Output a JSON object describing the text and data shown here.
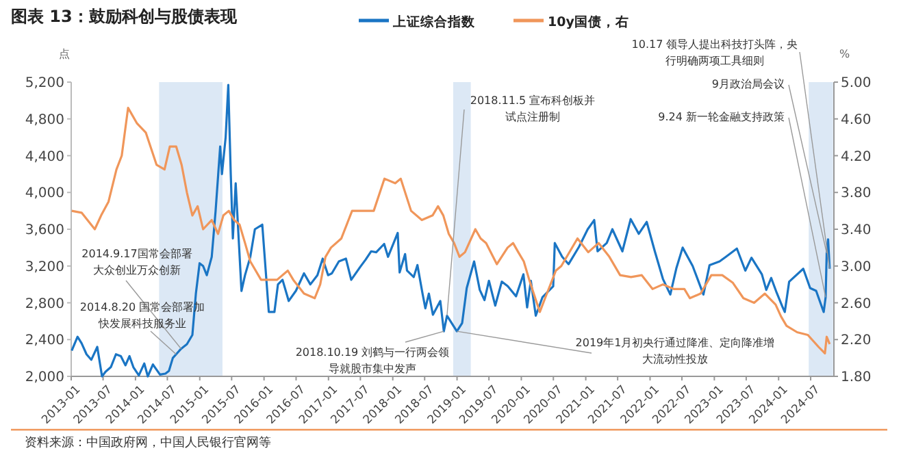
{
  "chart_data": {
    "type": "line",
    "title": "图表 13：鼓励科创与股债表现",
    "ylabel": "点",
    "y2label": "%",
    "legend": "top",
    "marker": "none",
    "line_style": "solid",
    "xlim": [
      "2013-01-01",
      "2024-11-10"
    ],
    "xticks": [
      "2013-01",
      "2013-07",
      "2014-01",
      "2014-07",
      "2015-01",
      "2015-07",
      "2016-01",
      "2016-07",
      "2017-01",
      "2017-07",
      "2018-01",
      "2018-07",
      "2019-01",
      "2019-07",
      "2020-01",
      "2020-07",
      "2021-01",
      "2021-07",
      "2022-01",
      "2022-07",
      "2023-01",
      "2023-07",
      "2024-01",
      "2024-07"
    ],
    "ylim": [
      2000,
      5200
    ],
    "yticks": [
      {
        "value": 2000,
        "label": "2,000"
      },
      {
        "value": 2400,
        "label": "2,400"
      },
      {
        "value": 2800,
        "label": "2,800"
      },
      {
        "value": 3200,
        "label": "3,200"
      },
      {
        "value": 3600,
        "label": "3,600"
      },
      {
        "value": 4000,
        "label": "4,000"
      },
      {
        "value": 4400,
        "label": "4,400"
      },
      {
        "value": 4800,
        "label": "4,800"
      },
      {
        "value": 5200,
        "label": "5,200"
      }
    ],
    "y2lim": [
      1.8,
      5.0
    ],
    "y2ticks": [
      {
        "value": 1.8,
        "label": "1.80"
      },
      {
        "value": 2.2,
        "label": "2.20"
      },
      {
        "value": 2.6,
        "label": "2.60"
      },
      {
        "value": 3.0,
        "label": "3.00"
      },
      {
        "value": 3.4,
        "label": "3.40"
      },
      {
        "value": 3.8,
        "label": "3.80"
      },
      {
        "value": 4.2,
        "label": "4.20"
      },
      {
        "value": 4.6,
        "label": "4.60"
      },
      {
        "value": 5.0,
        "label": "5.00"
      }
    ],
    "bands": [
      {
        "axis": "x",
        "from": "2014-05-15",
        "to": "2015-05-10",
        "color": "#dce8f5"
      },
      {
        "axis": "x",
        "from": "2018-12-10",
        "to": "2019-03-20",
        "color": "#dce8f5"
      },
      {
        "axis": "x",
        "from": "2024-06-20",
        "to": "2024-11-05",
        "color": "#dce8f5"
      }
    ],
    "series": [
      {
        "name": "上证综合指数",
        "color": "#1a75c4",
        "x": [
          "2013-01-04",
          "2013-02-06",
          "2013-03-01",
          "2013-03-29",
          "2013-04-25",
          "2013-05-29",
          "2013-06-25",
          "2013-07-15",
          "2013-08-14",
          "2013-09-12",
          "2013-10-10",
          "2013-11-05",
          "2013-11-28",
          "2013-12-20",
          "2014-01-20",
          "2014-02-20",
          "2014-03-12",
          "2014-04-10",
          "2014-05-20",
          "2014-06-20",
          "2014-07-10",
          "2014-08-01",
          "2014-08-20",
          "2014-09-17",
          "2014-10-20",
          "2014-11-20",
          "2014-12-10",
          "2014-12-31",
          "2015-01-20",
          "2015-02-10",
          "2015-03-10",
          "2015-04-01",
          "2015-04-27",
          "2015-05-07",
          "2015-05-28",
          "2015-06-12",
          "2015-06-26",
          "2015-07-08",
          "2015-07-24",
          "2015-08-26",
          "2015-09-15",
          "2015-10-15",
          "2015-11-10",
          "2015-12-22",
          "2016-01-28",
          "2016-02-29",
          "2016-03-20",
          "2016-04-15",
          "2016-05-20",
          "2016-06-30",
          "2016-08-15",
          "2016-09-20",
          "2016-10-30",
          "2016-11-29",
          "2016-12-30",
          "2017-01-20",
          "2017-03-01",
          "2017-04-10",
          "2017-05-10",
          "2017-06-30",
          "2017-07-31",
          "2017-08-31",
          "2017-09-29",
          "2017-11-13",
          "2017-12-05",
          "2018-01-29",
          "2018-02-09",
          "2018-03-12",
          "2018-03-23",
          "2018-04-30",
          "2018-05-21",
          "2018-06-19",
          "2018-07-05",
          "2018-07-25",
          "2018-08-17",
          "2018-09-28",
          "2018-10-18",
          "2018-11-05",
          "2018-12-31",
          "2019-01-30",
          "2019-02-25",
          "2019-04-08",
          "2019-05-10",
          "2019-06-06",
          "2019-07-01",
          "2019-08-06",
          "2019-09-12",
          "2019-10-16",
          "2019-12-02",
          "2020-01-13",
          "2020-02-03",
          "2020-02-24",
          "2020-03-23",
          "2020-04-30",
          "2020-06-30",
          "2020-07-09",
          "2020-08-20",
          "2020-09-25",
          "2020-11-24",
          "2021-01-12",
          "2021-02-18",
          "2021-03-09",
          "2021-04-30",
          "2021-06-01",
          "2021-07-28",
          "2021-09-13",
          "2021-10-29",
          "2021-12-13",
          "2022-01-28",
          "2022-03-15",
          "2022-04-26",
          "2022-05-31",
          "2022-07-05",
          "2022-08-31",
          "2022-10-31",
          "2022-12-05",
          "2023-01-31",
          "2023-03-08",
          "2023-05-09",
          "2023-06-26",
          "2023-07-31",
          "2023-09-28",
          "2023-10-23",
          "2023-11-20",
          "2023-12-21",
          "2024-01-22",
          "2024-02-05",
          "2024-03-01",
          "2024-05-20",
          "2024-06-28",
          "2024-08-01",
          "2024-09-13",
          "2024-09-24",
          "2024-09-30",
          "2024-10-08",
          "2024-10-17"
        ],
        "values": [
          2280,
          2430,
          2360,
          2240,
          2180,
          2320,
          2000,
          2050,
          2100,
          2240,
          2220,
          2120,
          2220,
          2100,
          2010,
          2140,
          2000,
          2130,
          2020,
          2030,
          2060,
          2200,
          2240,
          2300,
          2350,
          2450,
          2900,
          3230,
          3200,
          3100,
          3300,
          3800,
          4500,
          4200,
          4600,
          5170,
          4200,
          3500,
          4100,
          2930,
          3100,
          3300,
          3600,
          3650,
          2700,
          2700,
          3000,
          3050,
          2820,
          2930,
          3120,
          3000,
          3100,
          3280,
          3100,
          3120,
          3250,
          3280,
          3050,
          3190,
          3270,
          3360,
          3350,
          3440,
          3300,
          3560,
          3130,
          3330,
          3150,
          3080,
          3210,
          2900,
          2740,
          2900,
          2670,
          2820,
          2490,
          2660,
          2490,
          2580,
          2960,
          3250,
          2940,
          2830,
          3040,
          2770,
          3030,
          2980,
          2870,
          3110,
          2750,
          3040,
          2660,
          2860,
          2980,
          3450,
          3300,
          3220,
          3410,
          3600,
          3700,
          3360,
          3450,
          3600,
          3360,
          3710,
          3550,
          3680,
          3360,
          3060,
          2890,
          3180,
          3400,
          3200,
          2890,
          3210,
          3250,
          3300,
          3390,
          3150,
          3290,
          3110,
          2940,
          3070,
          2910,
          2760,
          2700,
          3030,
          3170,
          2960,
          2930,
          2700,
          2860,
          3340,
          3490,
          3170
        ]
      },
      {
        "name": "10y国债，右",
        "color": "#f0965a",
        "axis": "y2",
        "x": [
          "2013-01-04",
          "2013-03-01",
          "2013-05-15",
          "2013-06-20",
          "2013-08-01",
          "2013-09-15",
          "2013-10-15",
          "2013-11-20",
          "2014-01-10",
          "2014-03-01",
          "2014-05-01",
          "2014-06-15",
          "2014-07-15",
          "2014-08-20",
          "2014-09-20",
          "2014-10-20",
          "2014-11-20",
          "2014-12-20",
          "2015-01-20",
          "2015-03-10",
          "2015-04-15",
          "2015-05-15",
          "2015-06-15",
          "2015-07-15",
          "2015-08-15",
          "2015-09-15",
          "2015-10-15",
          "2015-12-15",
          "2016-01-15",
          "2016-03-15",
          "2016-05-15",
          "2016-06-15",
          "2016-08-15",
          "2016-10-15",
          "2016-11-15",
          "2016-12-15",
          "2017-01-15",
          "2017-03-15",
          "2017-05-15",
          "2017-07-15",
          "2017-09-15",
          "2017-11-15",
          "2018-01-15",
          "2018-02-15",
          "2018-04-15",
          "2018-06-15",
          "2018-08-15",
          "2018-09-15",
          "2018-10-15",
          "2018-11-15",
          "2018-12-15",
          "2019-01-15",
          "2019-02-15",
          "2019-04-15",
          "2019-05-15",
          "2019-06-15",
          "2019-08-15",
          "2019-10-15",
          "2019-11-15",
          "2019-12-15",
          "2020-01-15",
          "2020-02-15",
          "2020-04-15",
          "2020-05-15",
          "2020-07-15",
          "2020-08-15",
          "2020-11-15",
          "2021-01-15",
          "2021-03-15",
          "2021-05-15",
          "2021-07-15",
          "2021-09-15",
          "2021-11-15",
          "2022-01-15",
          "2022-03-15",
          "2022-05-15",
          "2022-07-15",
          "2022-08-15",
          "2022-10-15",
          "2022-12-15",
          "2023-02-15",
          "2023-04-15",
          "2023-06-15",
          "2023-08-15",
          "2023-10-15",
          "2023-12-15",
          "2024-01-15",
          "2024-02-15",
          "2024-04-15",
          "2024-06-15",
          "2024-08-15",
          "2024-09-20",
          "2024-09-30",
          "2024-10-17"
        ],
        "values": [
          3.6,
          3.58,
          3.4,
          3.55,
          3.7,
          4.05,
          4.2,
          4.72,
          4.55,
          4.45,
          4.1,
          4.05,
          4.3,
          4.3,
          4.1,
          3.8,
          3.55,
          3.65,
          3.4,
          3.5,
          3.35,
          3.55,
          3.6,
          3.5,
          3.45,
          3.25,
          3.05,
          2.85,
          2.85,
          2.85,
          2.95,
          2.85,
          2.7,
          2.65,
          2.8,
          3.1,
          3.2,
          3.3,
          3.6,
          3.6,
          3.6,
          3.95,
          3.9,
          3.95,
          3.6,
          3.5,
          3.55,
          3.65,
          3.55,
          3.35,
          3.25,
          3.1,
          3.15,
          3.4,
          3.3,
          3.25,
          3.02,
          3.2,
          3.25,
          3.15,
          3.05,
          2.85,
          2.5,
          2.65,
          2.95,
          3.0,
          3.3,
          3.15,
          3.25,
          3.1,
          2.9,
          2.88,
          2.9,
          2.75,
          2.8,
          2.75,
          2.75,
          2.65,
          2.7,
          2.9,
          2.9,
          2.82,
          2.65,
          2.6,
          2.7,
          2.58,
          2.45,
          2.35,
          2.28,
          2.25,
          2.12,
          2.05,
          2.23,
          2.15
        ]
      }
    ],
    "annotations": [
      {
        "text": "2014.9.17国常会部署大众创业万众创新",
        "x": "2014-09-17",
        "y": 2300
      },
      {
        "text": "2014.8.20 国常会部署加快发展科技服务业",
        "x": "2014-08-20",
        "y": 2240
      },
      {
        "text": "2018.10.19 刘鹤与一行两会领导就股市集中发声",
        "x": "2018-10-18",
        "y": 2490
      },
      {
        "text": "2018.11.5 宣布科创板并试点注册制",
        "x": "2018-11-05",
        "y": 2660
      },
      {
        "text": "2019年1月初央行通过降准、定向降准增大流动性投放",
        "x": "2018-12-31",
        "y": 2490
      },
      {
        "text": "9.24 新一轮金融支持政策",
        "x": "2024-09-24",
        "y": 2860
      },
      {
        "text": "9月政治局会议",
        "x": "2024-09-30",
        "y": 3340
      },
      {
        "text": "10.17 领导人提出科技打头阵，央行明确两项工具细则",
        "x": "2024-10-17",
        "y": 3170
      },
      "资料来源：中国政府网，中国人民银行官网等"
    ]
  }
}
